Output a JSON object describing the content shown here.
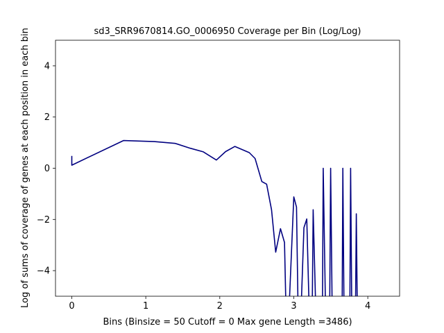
{
  "chart_data": {
    "type": "line",
    "title": "sd3_SRR9670814.GO_0006950 Coverage per Bin (Log/Log)",
    "xlabel": "Bins  (Binsize = 50 Cutoff = 0 Max gene Length =3486)",
    "ylabel": "Log of sums of coverage of genes at each position in each bin",
    "xlim": [
      -0.22,
      4.43
    ],
    "ylim": [
      -5,
      5
    ],
    "xticks": [
      0,
      1,
      2,
      3,
      4
    ],
    "yticks": [
      4,
      2,
      0,
      -2,
      -4
    ],
    "ytick_labels": [
      "4",
      "2",
      "0",
      "−2",
      "−4"
    ],
    "grid": false,
    "series": [
      {
        "color": "#000080",
        "x": [
          0,
          0,
          0.699,
          1.114,
          1.398,
          1.602,
          1.778,
          1.954,
          2.079,
          2.204,
          2.398,
          2.477,
          2.568,
          2.633,
          2.699,
          2.756,
          2.82,
          2.875,
          2.898,
          2.929,
          3.0,
          3.037,
          3.06,
          3.093,
          3.137,
          3.176,
          3.212,
          3.248,
          3.262,
          3.301,
          3.387,
          3.398,
          3.432,
          3.484,
          3.498,
          3.521,
          3.653,
          3.663,
          3.68,
          3.757,
          3.768,
          3.785,
          3.833,
          3.845,
          3.86
        ],
        "y": [
          0.48,
          0.12,
          1.08,
          1.04,
          0.97,
          0.78,
          0.64,
          0.32,
          0.65,
          0.85,
          0.61,
          0.38,
          -0.52,
          -0.62,
          -1.62,
          -3.28,
          -2.36,
          -2.9,
          -6,
          -6,
          -1.12,
          -1.52,
          -6,
          -6,
          -2.32,
          -1.98,
          -6,
          -6,
          -1.62,
          -6,
          -6,
          0.0,
          -6,
          -6,
          0.0,
          -6,
          -6,
          0.0,
          -6,
          -6,
          0.0,
          -6,
          -6,
          -1.78,
          -6
        ]
      }
    ]
  }
}
